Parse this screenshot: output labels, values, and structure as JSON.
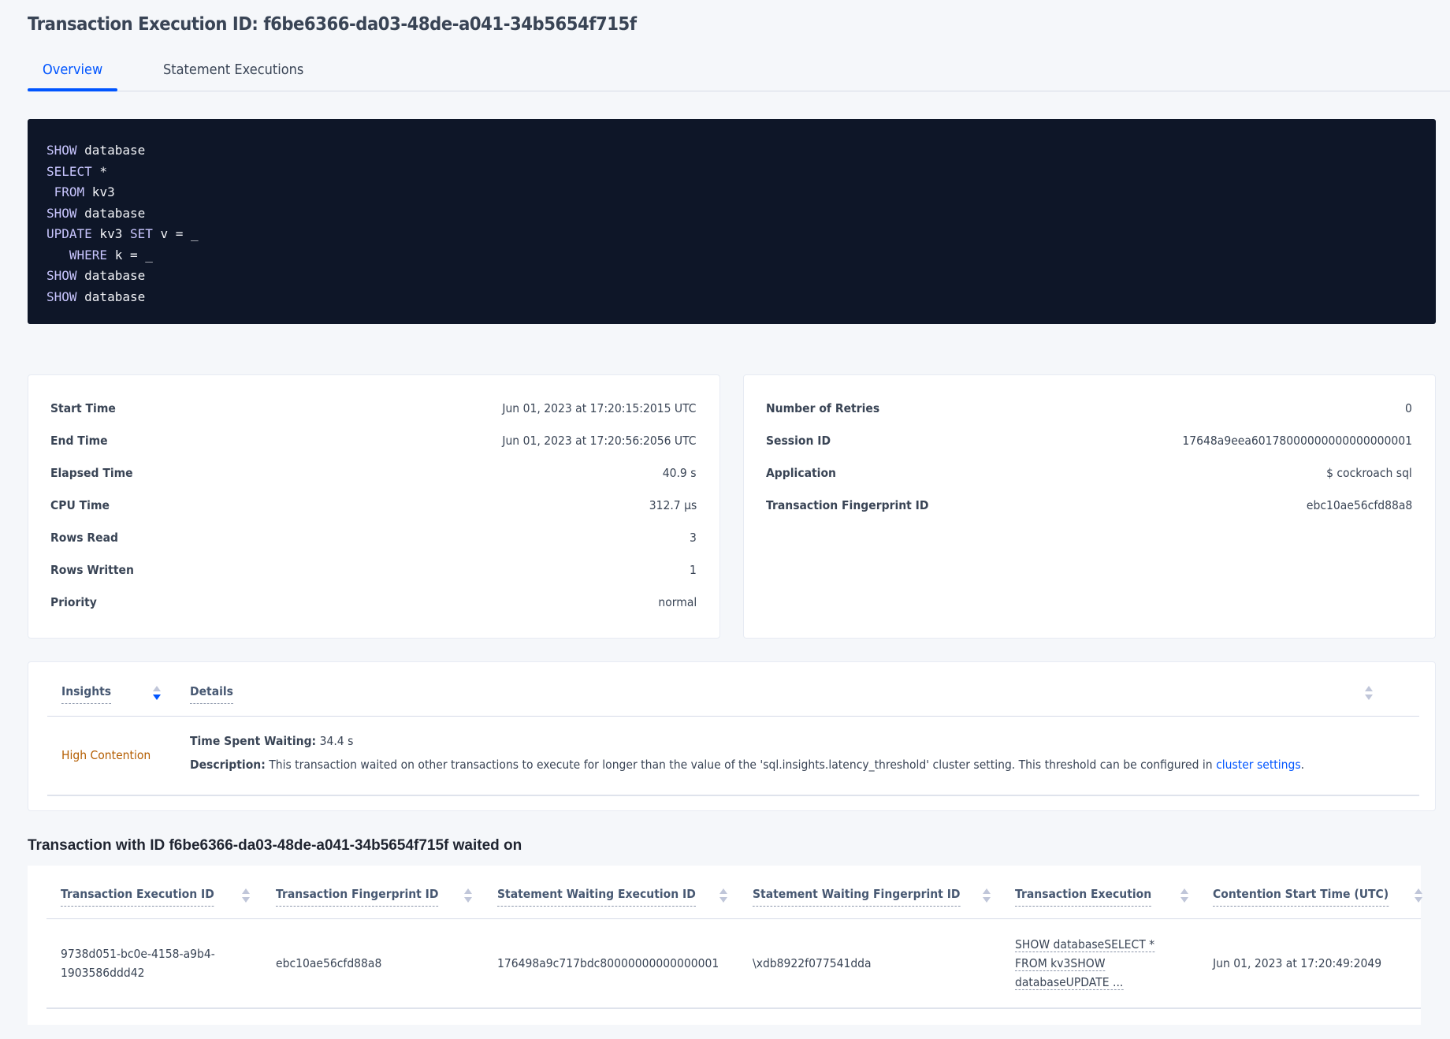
{
  "page": {
    "title": "Transaction Execution ID: f6be6366-da03-48de-a041-34b5654f715f"
  },
  "tabs": [
    {
      "label": "Overview",
      "active": true
    },
    {
      "label": "Statement Executions",
      "active": false
    }
  ],
  "sql": {
    "lines": [
      [
        {
          "t": "SHOW",
          "kw": true
        },
        {
          "t": " database"
        }
      ],
      [
        {
          "t": "SELECT",
          "kw": true
        },
        {
          "t": " *"
        }
      ],
      [
        {
          "t": " FROM",
          "kw": true
        },
        {
          "t": " kv3"
        }
      ],
      [
        {
          "t": "SHOW",
          "kw": true
        },
        {
          "t": " database"
        }
      ],
      [
        {
          "t": "UPDATE",
          "kw": true
        },
        {
          "t": " kv3 "
        },
        {
          "t": "SET",
          "kw": true
        },
        {
          "t": " v = _"
        }
      ],
      [
        {
          "t": "   WHERE",
          "kw": true
        },
        {
          "t": " k = _"
        }
      ],
      [
        {
          "t": "SHOW",
          "kw": true
        },
        {
          "t": " database"
        }
      ],
      [
        {
          "t": "SHOW",
          "kw": true
        },
        {
          "t": " database"
        }
      ]
    ]
  },
  "summary_left": [
    {
      "label": "Start Time",
      "value": "Jun 01, 2023 at 17:20:15:2015 UTC"
    },
    {
      "label": "End Time",
      "value": "Jun 01, 2023 at 17:20:56:2056 UTC"
    },
    {
      "label": "Elapsed Time",
      "value": "40.9 s"
    },
    {
      "label": "CPU Time",
      "value": "312.7 µs"
    },
    {
      "label": "Rows Read",
      "value": "3"
    },
    {
      "label": "Rows Written",
      "value": "1"
    },
    {
      "label": "Priority",
      "value": "normal"
    }
  ],
  "summary_right": [
    {
      "label": "Number of Retries",
      "value": "0"
    },
    {
      "label": "Session ID",
      "value": "17648a9eea60178000000000000000001"
    },
    {
      "label": "Application",
      "value": "$ cockroach sql"
    },
    {
      "label": "Transaction Fingerprint ID",
      "value": "ebc10ae56cfd88a8",
      "link": true
    }
  ],
  "insights": {
    "headers": [
      "Insights",
      "Details"
    ],
    "rows": [
      {
        "insight": "High Contention",
        "time_label": "Time Spent Waiting:",
        "time_value": " 34.4 s",
        "desc_label": "Description:",
        "desc_text": " This transaction waited on other transactions to execute for longer than the value of the 'sql.insights.latency_threshold' cluster setting. This threshold can be configured in ",
        "desc_link": "cluster settings",
        "desc_end": "."
      }
    ]
  },
  "waited": {
    "heading": "Transaction with ID f6be6366-da03-48de-a041-34b5654f715f waited on",
    "headers": [
      "Transaction Execution ID",
      "Transaction Fingerprint ID",
      "Statement Waiting Execution ID",
      "Statement Waiting Fingerprint ID",
      "Transaction Execution",
      "Contention Start Time (UTC)"
    ],
    "rows": [
      {
        "txn_exec_id": [
          "9738d051-bc0e-4158-a9b4-",
          "1903586ddd42"
        ],
        "txn_fingerprint_id": "ebc10ae56cfd88a8",
        "stmt_exec_id": "176498a9c717bdc80000000000000001",
        "stmt_fingerprint_id": "\\xdb8922f077541dda",
        "txn_execution": [
          "SHOW databaseSELECT *",
          "FROM kv3SHOW",
          "databaseUPDATE ..."
        ],
        "contention_start": "Jun 01, 2023 at 17:20:49:2049"
      }
    ]
  },
  "colors": {
    "accent": "#0055ff",
    "code_bg": "#0e1628",
    "insight": "#b45d00"
  }
}
